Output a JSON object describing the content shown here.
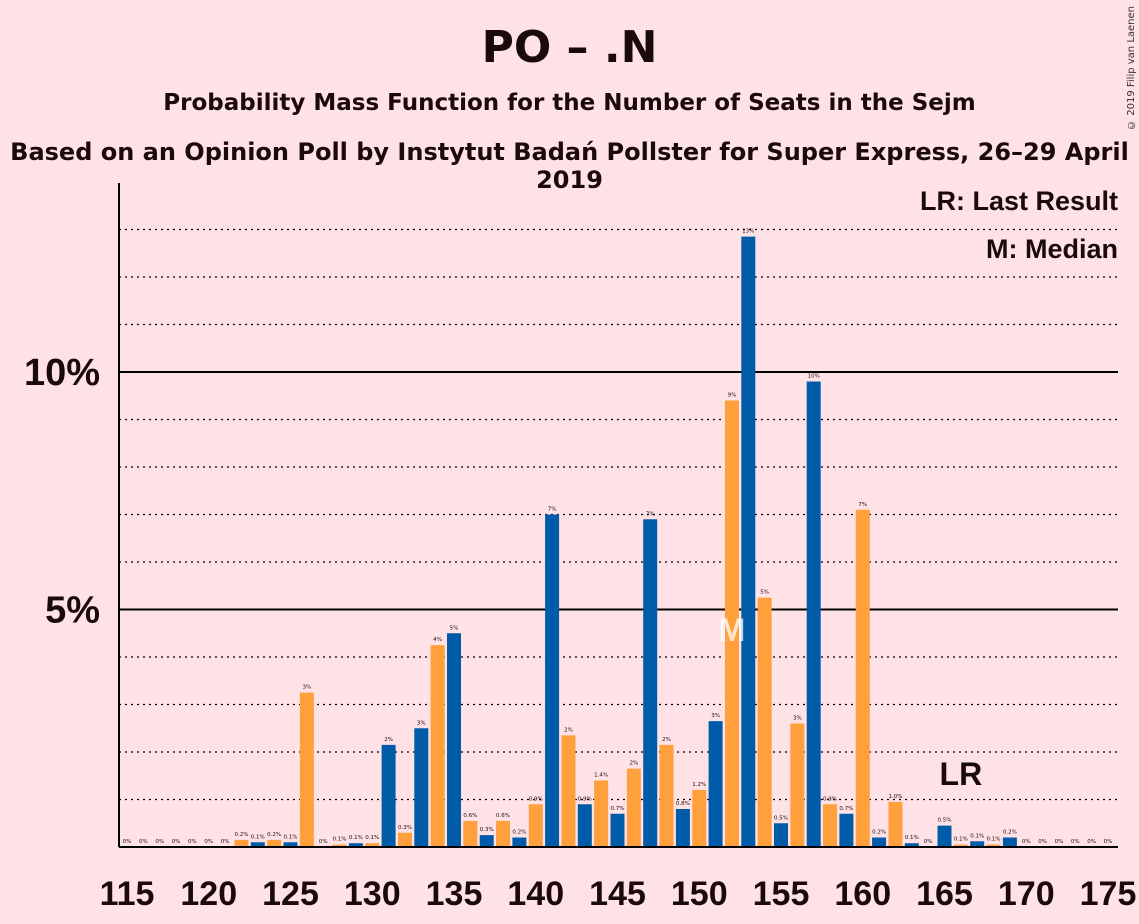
{
  "title": "PO – .N",
  "subtitle": "Probability Mass Function for the Number of Seats in the Sejm",
  "subtitle2": "Based on an Opinion Poll by Instytut Badań Pollster for Super Express, 26–29 April 2019",
  "copyright": "© 2019 Filip van Laenen",
  "legend": {
    "lr": "LR: Last Result",
    "m": "M: Median"
  },
  "markers": {
    "median_label": "M",
    "median_seat": 152,
    "lr_label": "LR",
    "lr_seat": 166
  },
  "colors": {
    "blue": "#005BA9",
    "orange": "#FFA03D",
    "background": "#FFE2E6"
  },
  "chart_data": {
    "type": "bar",
    "xlabel": "",
    "ylabel": "",
    "xlim": [
      115,
      175
    ],
    "ylim": [
      0,
      14
    ],
    "x_ticks": [
      115,
      120,
      125,
      130,
      135,
      140,
      145,
      150,
      155,
      160,
      165,
      170,
      175
    ],
    "y_ticks": [
      {
        "value": 5,
        "label": "5%"
      },
      {
        "value": 10,
        "label": "10%"
      }
    ],
    "bars": [
      {
        "seat": 115,
        "value": 0.0,
        "label": "0%",
        "color": "blue"
      },
      {
        "seat": 116,
        "value": 0.0,
        "label": "0%",
        "color": "orange"
      },
      {
        "seat": 117,
        "value": 0.0,
        "label": "0%",
        "color": "blue"
      },
      {
        "seat": 118,
        "value": 0.0,
        "label": "0%",
        "color": "orange"
      },
      {
        "seat": 119,
        "value": 0.0,
        "label": "0%",
        "color": "blue"
      },
      {
        "seat": 120,
        "value": 0.0,
        "label": "0%",
        "color": "orange"
      },
      {
        "seat": 121,
        "value": 0.0,
        "label": "0%",
        "color": "blue"
      },
      {
        "seat": 122,
        "value": 0.15,
        "label": "0.2%",
        "color": "orange"
      },
      {
        "seat": 123,
        "value": 0.1,
        "label": "0.1%",
        "color": "blue"
      },
      {
        "seat": 124,
        "value": 0.15,
        "label": "0.2%",
        "color": "orange"
      },
      {
        "seat": 125,
        "value": 0.1,
        "label": "0.1%",
        "color": "blue"
      },
      {
        "seat": 126,
        "value": 3.25,
        "label": "3%",
        "color": "orange"
      },
      {
        "seat": 127,
        "value": 0.0,
        "label": "0%",
        "color": "blue"
      },
      {
        "seat": 128,
        "value": 0.05,
        "label": "0.1%",
        "color": "orange"
      },
      {
        "seat": 129,
        "value": 0.08,
        "label": "0.1%",
        "color": "blue"
      },
      {
        "seat": 130,
        "value": 0.08,
        "label": "0.1%",
        "color": "orange"
      },
      {
        "seat": 131,
        "value": 2.15,
        "label": "2%",
        "color": "blue"
      },
      {
        "seat": 132,
        "value": 0.3,
        "label": "0.3%",
        "color": "orange"
      },
      {
        "seat": 133,
        "value": 2.5,
        "label": "3%",
        "color": "blue"
      },
      {
        "seat": 134,
        "value": 4.25,
        "label": "4%",
        "color": "orange"
      },
      {
        "seat": 135,
        "value": 4.5,
        "label": "5%",
        "color": "blue"
      },
      {
        "seat": 136,
        "value": 0.55,
        "label": "0.6%",
        "color": "orange"
      },
      {
        "seat": 137,
        "value": 0.25,
        "label": "0.3%",
        "color": "blue"
      },
      {
        "seat": 138,
        "value": 0.55,
        "label": "0.6%",
        "color": "orange"
      },
      {
        "seat": 139,
        "value": 0.2,
        "label": "0.2%",
        "color": "blue"
      },
      {
        "seat": 140,
        "value": 0.9,
        "label": "0.9%",
        "color": "orange"
      },
      {
        "seat": 141,
        "value": 7.0,
        "label": "7%",
        "color": "blue"
      },
      {
        "seat": 142,
        "value": 2.35,
        "label": "2%",
        "color": "orange"
      },
      {
        "seat": 143,
        "value": 0.9,
        "label": "0.9%",
        "color": "blue"
      },
      {
        "seat": 144,
        "value": 1.4,
        "label": "1.4%",
        "color": "orange"
      },
      {
        "seat": 145,
        "value": 0.7,
        "label": "0.7%",
        "color": "blue"
      },
      {
        "seat": 146,
        "value": 1.65,
        "label": "2%",
        "color": "orange"
      },
      {
        "seat": 147,
        "value": 6.9,
        "label": "7%",
        "color": "blue"
      },
      {
        "seat": 148,
        "value": 2.15,
        "label": "2%",
        "color": "orange"
      },
      {
        "seat": 149,
        "value": 0.8,
        "label": "0.8%",
        "color": "blue"
      },
      {
        "seat": 150,
        "value": 1.2,
        "label": "1.2%",
        "color": "orange"
      },
      {
        "seat": 151,
        "value": 2.65,
        "label": "3%",
        "color": "blue"
      },
      {
        "seat": 152,
        "value": 9.4,
        "label": "9%",
        "color": "orange"
      },
      {
        "seat": 153,
        "value": 12.85,
        "label": "13%",
        "color": "blue"
      },
      {
        "seat": 154,
        "value": 5.25,
        "label": "5%",
        "color": "orange"
      },
      {
        "seat": 155,
        "value": 0.5,
        "label": "0.5%",
        "color": "blue"
      },
      {
        "seat": 156,
        "value": 2.6,
        "label": "3%",
        "color": "orange"
      },
      {
        "seat": 157,
        "value": 9.8,
        "label": "10%",
        "color": "blue"
      },
      {
        "seat": 158,
        "value": 0.9,
        "label": "0.9%",
        "color": "orange"
      },
      {
        "seat": 159,
        "value": 0.7,
        "label": "0.7%",
        "color": "blue"
      },
      {
        "seat": 160,
        "value": 7.1,
        "label": "7%",
        "color": "orange"
      },
      {
        "seat": 161,
        "value": 0.2,
        "label": "0.2%",
        "color": "blue"
      },
      {
        "seat": 162,
        "value": 0.95,
        "label": "1.0%",
        "color": "orange"
      },
      {
        "seat": 163,
        "value": 0.08,
        "label": "0.1%",
        "color": "blue"
      },
      {
        "seat": 164,
        "value": 0.0,
        "label": "0%",
        "color": "orange"
      },
      {
        "seat": 165,
        "value": 0.45,
        "label": "0.5%",
        "color": "blue"
      },
      {
        "seat": 166,
        "value": 0.05,
        "label": "0.1%",
        "color": "orange"
      },
      {
        "seat": 167,
        "value": 0.12,
        "label": "0.1%",
        "color": "blue"
      },
      {
        "seat": 168,
        "value": 0.05,
        "label": "0.1%",
        "color": "orange"
      },
      {
        "seat": 169,
        "value": 0.2,
        "label": "0.2%",
        "color": "blue"
      },
      {
        "seat": 170,
        "value": 0.0,
        "label": "0%",
        "color": "orange"
      },
      {
        "seat": 171,
        "value": 0.0,
        "label": "0%",
        "color": "blue"
      },
      {
        "seat": 172,
        "value": 0.0,
        "label": "0%",
        "color": "orange"
      },
      {
        "seat": 173,
        "value": 0.0,
        "label": "0%",
        "color": "blue"
      },
      {
        "seat": 174,
        "value": 0.0,
        "label": "0%",
        "color": "orange"
      },
      {
        "seat": 175,
        "value": 0.0,
        "label": "0%",
        "color": "blue"
      }
    ]
  }
}
